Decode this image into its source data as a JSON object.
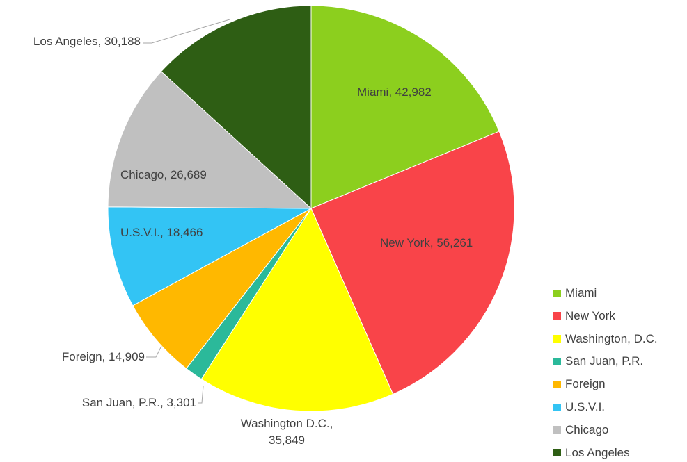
{
  "chart_data": {
    "type": "pie",
    "categories": [
      "Miami",
      "New York",
      "Washington, D.C.",
      "San Juan, P.R.",
      "Foreign",
      "U.S.V.I.",
      "Chicago",
      "Los Angeles"
    ],
    "values": [
      42982,
      56261,
      35849,
      3301,
      14909,
      18466,
      26689,
      30188
    ],
    "value_labels": [
      "Miami, 42,982",
      "New York, 56,261",
      "Washington D.C., 35,849",
      "San Juan, P.R., 3,301",
      "Foreign, 14,909",
      "U.S.V.I., 18,466",
      "Chicago, 26,689",
      "Los Angeles, 30,188"
    ],
    "colors": [
      "#8ccf1e",
      "#f94449",
      "#ffff00",
      "#2bb99a",
      "#ffb800",
      "#33c4f4",
      "#c0c0c0",
      "#2e5e14"
    ],
    "legend": "right"
  }
}
